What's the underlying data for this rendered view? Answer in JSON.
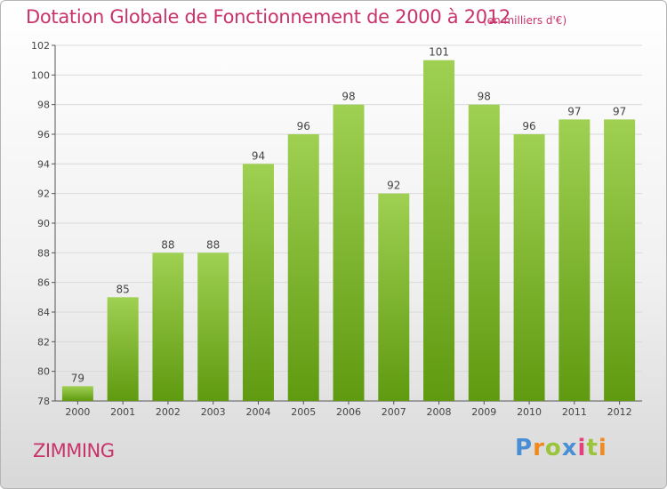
{
  "header": {
    "title": "Dotation Globale de Fonctionnement de 2000 à 2012",
    "unit": "(en milliers d'€)"
  },
  "footer": {
    "commune": "ZIMMING",
    "logo_text": "Proxiti"
  },
  "colors": {
    "bar_top": "#9fd052",
    "bar_bottom": "#5f9a10",
    "title": "#c8336b",
    "grid": "#d9d9d9"
  },
  "chart_data": {
    "type": "bar",
    "title": "Dotation Globale de Fonctionnement de 2000 à 2012",
    "subtitle": "(en milliers d'€)",
    "categories": [
      "2000",
      "2001",
      "2002",
      "2003",
      "2004",
      "2005",
      "2006",
      "2007",
      "2008",
      "2009",
      "2010",
      "2011",
      "2012"
    ],
    "values": [
      79,
      85,
      88,
      88,
      94,
      96,
      98,
      92,
      101,
      98,
      96,
      97,
      97
    ],
    "data_labels": [
      "79",
      "85",
      "88",
      "88",
      "94",
      "96",
      "98",
      "92",
      "101",
      "98",
      "96",
      "97",
      "97"
    ],
    "yticks": [
      78,
      80,
      82,
      84,
      86,
      88,
      90,
      92,
      94,
      96,
      98,
      100,
      102
    ],
    "ylim": [
      78,
      102
    ],
    "grid": true,
    "legend": "none"
  }
}
